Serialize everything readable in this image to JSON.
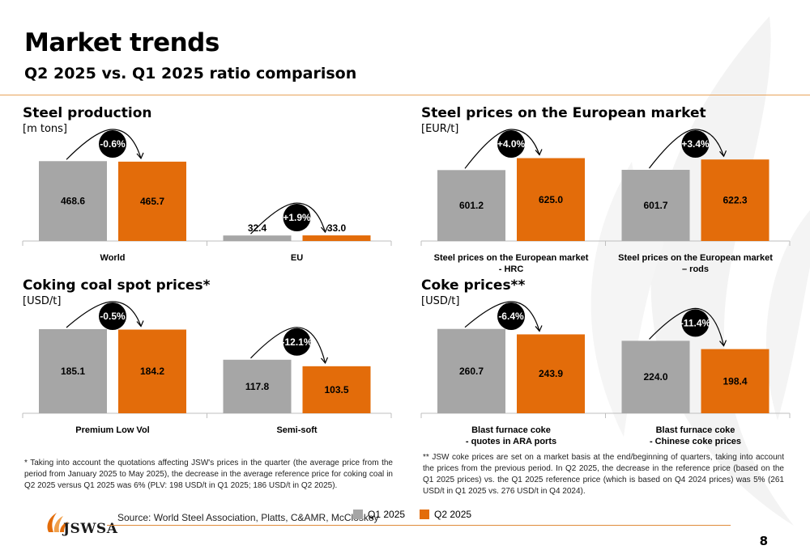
{
  "header": {
    "title": "Market trends",
    "subtitle": "Q2 2025 vs. Q1 2025 ratio comparison"
  },
  "colors": {
    "q1": "#a6a6a6",
    "q2": "#e36c0a",
    "accent": "#e36c0a",
    "badge": "#000000"
  },
  "chart_data": [
    {
      "type": "bar",
      "title": "Steel production",
      "unit": "[m tons]",
      "categories": [
        "World",
        "EU"
      ],
      "series": [
        {
          "name": "Q1 2025",
          "values": [
            468.6,
            32.4
          ]
        },
        {
          "name": "Q2 2025",
          "values": [
            465.7,
            33.0
          ]
        }
      ],
      "value_labels": [
        [
          "468.6",
          "32.4"
        ],
        [
          "465.7",
          "33.0"
        ]
      ],
      "changes": [
        "-0.6%",
        "+1.9%"
      ],
      "ylim": [
        0,
        560
      ]
    },
    {
      "type": "bar",
      "title": "Steel prices on the European market",
      "unit": "[EUR/t]",
      "categories": [
        "Steel prices on the European market|- HRC",
        "Steel prices on the European market|– rods"
      ],
      "series": [
        {
          "name": "Q1 2025",
          "values": [
            601.2,
            601.7
          ]
        },
        {
          "name": "Q2 2025",
          "values": [
            625.0,
            622.3
          ]
        }
      ],
      "value_labels": [
        [
          "601.2",
          "601.7"
        ],
        [
          "625.0",
          "622.3"
        ]
      ],
      "changes": [
        "+4.0%",
        "+3.4%"
      ],
      "ylim": [
        460,
        650
      ]
    },
    {
      "type": "bar",
      "title": "Coking coal spot prices*",
      "unit": "[USD/t]",
      "categories": [
        "Premium Low Vol",
        "Semi-soft"
      ],
      "series": [
        {
          "name": "Q1 2025",
          "values": [
            185.1,
            117.8
          ]
        },
        {
          "name": "Q2 2025",
          "values": [
            184.2,
            103.5
          ]
        }
      ],
      "value_labels": [
        [
          "185.1",
          "117.8"
        ],
        [
          "184.2",
          "103.5"
        ]
      ],
      "changes": [
        "-0.5%",
        "-12.1%"
      ],
      "ylim": [
        0,
        210
      ]
    },
    {
      "type": "bar",
      "title": "Coke prices**",
      "unit": "[USD/t]",
      "categories": [
        "Blast furnace coke|- quotes in ARA ports",
        "Blast furnace coke|- Chinese coke prices"
      ],
      "series": [
        {
          "name": "Q1 2025",
          "values": [
            260.7,
            224.0
          ]
        },
        {
          "name": "Q2 2025",
          "values": [
            243.9,
            198.4
          ]
        }
      ],
      "value_labels": [
        [
          "260.7",
          "224.0"
        ],
        [
          "243.9",
          "198.4"
        ]
      ],
      "changes": [
        "-6.4%",
        "-11.4%"
      ],
      "ylim": [
        0,
        295
      ]
    }
  ],
  "notes": {
    "coking_coal": "* Taking into account the quotations affecting JSW's prices in the quarter (the average price from the period from January 2025 to May 2025), the decrease in the average reference price for coking coal in Q2 2025 versus Q1 2025 was 6% (PLV: 198 USD/t in Q1 2025; 186 USD/t in Q2 2025).",
    "coke": "** JSW coke prices are set on a market basis at the end/beginning of quarters, taking into account the prices from the previous period. In Q2 2025, the decrease in the reference price (based on the Q1 2025 prices) vs. the Q1 2025 reference price (which is based on Q4 2024 prices) was 5% (261 USD/t in Q1 2025 vs. 276 USD/t in Q4 2024)."
  },
  "footer": {
    "logo_text": "JSWSA",
    "source": "Source: World Steel Association, Platts, C&AMR, McCloskey",
    "legend_q1": "Q1 2025",
    "legend_q2": "Q2 2025",
    "page_number": "8"
  }
}
